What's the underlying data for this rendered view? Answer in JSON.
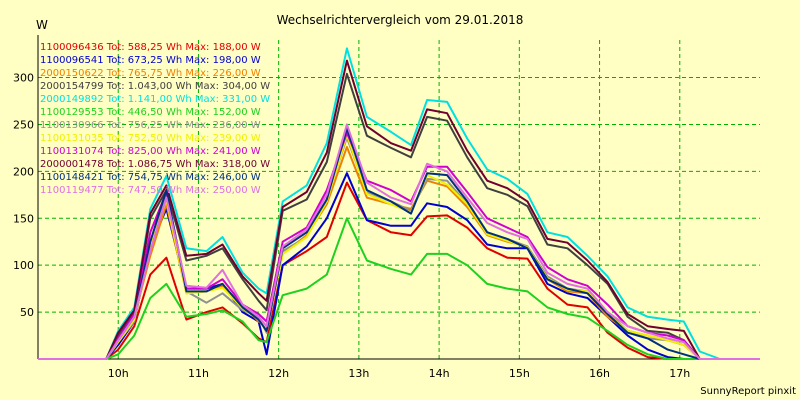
{
  "chart_data": {
    "type": "line",
    "title": "Wechselrichtervergleich vom 29.01.2018",
    "ylabel": "W",
    "footer": "SunnyReport pinxit",
    "x_unit": "h",
    "xlim": [
      9.0,
      18.0
    ],
    "ylim": [
      0,
      340
    ],
    "y_ticks": [
      50,
      100,
      150,
      200,
      250,
      300
    ],
    "x_ticks": [
      {
        "value": 10,
        "label": "10h"
      },
      {
        "value": 11,
        "label": "11h"
      },
      {
        "value": 12,
        "label": "12h"
      },
      {
        "value": 13,
        "label": "13h"
      },
      {
        "value": 14,
        "label": "14h"
      },
      {
        "value": 15,
        "label": "15h"
      },
      {
        "value": 16,
        "label": "16h"
      },
      {
        "value": 17,
        "label": "17h"
      }
    ],
    "grid": true,
    "legend_position": "top-left",
    "x": [
      9.0,
      9.5,
      9.85,
      10.0,
      10.2,
      10.4,
      10.6,
      10.85,
      11.1,
      11.3,
      11.55,
      11.75,
      11.85,
      12.05,
      12.35,
      12.6,
      12.85,
      13.1,
      13.4,
      13.65,
      13.85,
      14.1,
      14.35,
      14.6,
      14.85,
      15.1,
      15.35,
      15.6,
      15.85,
      16.1,
      16.35,
      16.6,
      16.85,
      17.05,
      17.25,
      17.5,
      18.0
    ],
    "series": [
      {
        "name": "1100096436 Tot: 588,25 Wh Max: 188,00 W",
        "color": "#e00000",
        "values": [
          0,
          0,
          0,
          10,
          35,
          90,
          108,
          42,
          50,
          55,
          38,
          22,
          18,
          100,
          115,
          130,
          188,
          148,
          135,
          132,
          152,
          153,
          140,
          118,
          108,
          107,
          75,
          58,
          55,
          28,
          12,
          2,
          0,
          0,
          0,
          0,
          0
        ]
      },
      {
        "name": "1100096541 Tot: 673,25 Wh Max: 198,00 W",
        "color": "#0000d0",
        "values": [
          0,
          0,
          0,
          15,
          40,
          120,
          160,
          75,
          75,
          80,
          50,
          40,
          5,
          100,
          120,
          150,
          198,
          148,
          142,
          142,
          166,
          162,
          148,
          122,
          118,
          118,
          80,
          70,
          65,
          45,
          25,
          10,
          2,
          0,
          0,
          0,
          0
        ]
      },
      {
        "name": "2000150622 Tot: 765,75 Wh Max: 226,00 W",
        "color": "#f08000",
        "values": [
          0,
          0,
          0,
          20,
          45,
          110,
          165,
          70,
          72,
          78,
          58,
          40,
          35,
          112,
          132,
          165,
          226,
          172,
          165,
          160,
          190,
          184,
          162,
          132,
          125,
          120,
          85,
          72,
          70,
          45,
          30,
          25,
          20,
          15,
          0,
          0,
          0
        ]
      },
      {
        "name": "2000154799 Tot: 1.043,00 Wh Max: 304,00 W",
        "color": "#404040",
        "values": [
          0,
          0,
          0,
          25,
          50,
          150,
          180,
          105,
          110,
          118,
          85,
          62,
          52,
          158,
          170,
          210,
          304,
          238,
          225,
          215,
          258,
          254,
          215,
          182,
          175,
          163,
          122,
          118,
          100,
          80,
          45,
          30,
          28,
          20,
          0,
          0,
          0
        ]
      },
      {
        "name": "2000149892 Tot: 1.141,00 Wh Max: 331,00 W",
        "color": "#00e0e0",
        "values": [
          0,
          0,
          0,
          30,
          55,
          160,
          195,
          118,
          115,
          130,
          92,
          75,
          70,
          168,
          185,
          230,
          331,
          258,
          242,
          228,
          276,
          274,
          235,
          202,
          192,
          176,
          135,
          130,
          110,
          88,
          55,
          45,
          42,
          40,
          8,
          0,
          0
        ]
      },
      {
        "name": "1100129553 Tot: 446,50 Wh Max: 152,00 W",
        "color": "#20d020",
        "values": [
          0,
          0,
          0,
          5,
          25,
          65,
          80,
          45,
          48,
          52,
          40,
          20,
          18,
          68,
          75,
          90,
          150,
          105,
          96,
          90,
          112,
          112,
          100,
          80,
          75,
          72,
          55,
          48,
          44,
          30,
          15,
          5,
          0,
          0,
          0,
          0,
          0
        ]
      },
      {
        "name": "1100130966 Tot: 756,25 Wh Max: 236,00 W",
        "color": "#909090",
        "values": [
          0,
          0,
          0,
          18,
          40,
          125,
          175,
          72,
          60,
          70,
          52,
          45,
          28,
          115,
          130,
          170,
          236,
          178,
          168,
          158,
          192,
          190,
          165,
          135,
          128,
          120,
          88,
          75,
          72,
          50,
          30,
          22,
          20,
          15,
          0,
          0,
          0
        ]
      },
      {
        "name": "1100131035 Tot: 752,50 Wh Max: 239,00 W",
        "color": "#f0f000",
        "values": [
          0,
          0,
          0,
          18,
          42,
          120,
          170,
          70,
          72,
          76,
          54,
          42,
          32,
          112,
          130,
          168,
          239,
          176,
          165,
          156,
          196,
          186,
          165,
          133,
          126,
          119,
          86,
          74,
          72,
          48,
          30,
          25,
          20,
          15,
          0,
          0,
          0
        ]
      },
      {
        "name": "1100131074 Tot: 825,00 Wh Max: 241,00 W",
        "color": "#d000d0",
        "values": [
          0,
          0,
          0,
          22,
          48,
          135,
          178,
          75,
          75,
          85,
          58,
          48,
          40,
          125,
          140,
          180,
          241,
          190,
          180,
          168,
          205,
          205,
          178,
          150,
          140,
          130,
          98,
          85,
          78,
          58,
          35,
          28,
          25,
          20,
          0,
          0,
          0
        ]
      },
      {
        "name": "2000001478 Tot: 1.086,75 Wh Max: 318,00 W",
        "color": "#700030",
        "values": [
          0,
          0,
          0,
          28,
          52,
          155,
          185,
          110,
          112,
          122,
          88,
          70,
          62,
          162,
          178,
          220,
          318,
          248,
          230,
          222,
          266,
          262,
          222,
          190,
          182,
          168,
          128,
          124,
          105,
          82,
          48,
          35,
          32,
          30,
          0,
          0,
          0
        ]
      },
      {
        "name": "1100148421 Tot: 754,75 Wh Max: 246,00 W",
        "color": "#003080",
        "values": [
          0,
          0,
          0,
          20,
          45,
          125,
          180,
          72,
          72,
          80,
          55,
          42,
          30,
          118,
          135,
          170,
          246,
          180,
          168,
          155,
          198,
          196,
          168,
          135,
          128,
          118,
          85,
          75,
          70,
          48,
          28,
          22,
          10,
          5,
          0,
          0,
          0
        ]
      },
      {
        "name": "1100119477 Tot: 747,50 Wh Max: 250,00 W",
        "color": "#e070e0",
        "values": [
          0,
          0,
          0,
          20,
          45,
          115,
          172,
          78,
          76,
          95,
          58,
          45,
          35,
          120,
          138,
          175,
          250,
          188,
          172,
          165,
          208,
          200,
          172,
          145,
          135,
          128,
          92,
          80,
          75,
          50,
          35,
          28,
          22,
          18,
          0,
          0,
          0
        ]
      }
    ]
  }
}
